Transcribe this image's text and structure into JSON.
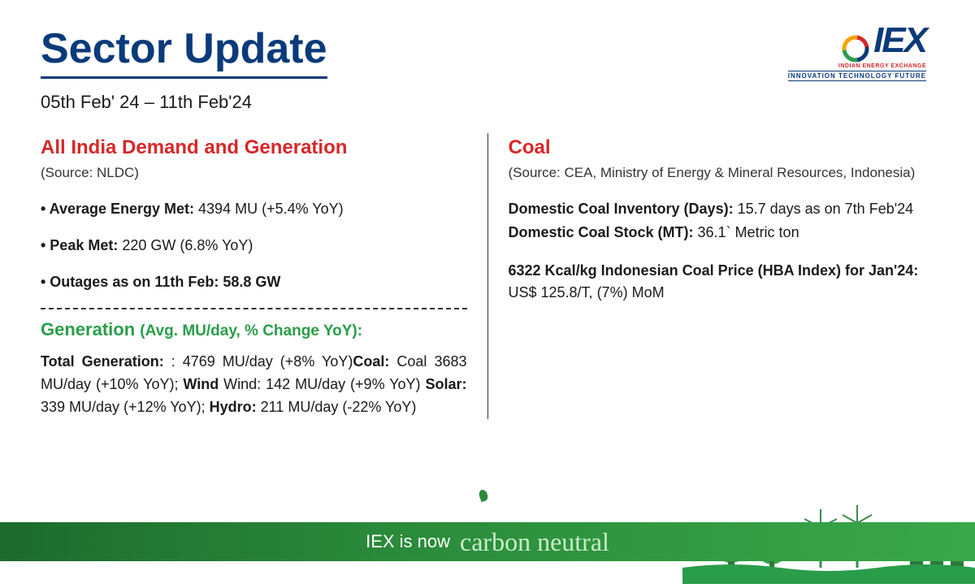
{
  "header": {
    "title": "Sector Update",
    "date_range": "05th Feb' 24 – 11th Feb'24"
  },
  "logo": {
    "text": "IEX",
    "sub": "INDIAN ENERGY EXCHANGE",
    "tag": "INNOVATION  TECHNOLOGY  FUTURE",
    "swirl_colors": [
      "#d62828",
      "#0a3a7a",
      "#2a9d4a"
    ]
  },
  "colors": {
    "title_blue": "#0a3a7a",
    "accent_red": "#d62828",
    "accent_green": "#2a9d4a",
    "banner_gradient_from": "#1d6b2e",
    "banner_gradient_to": "#3aa84a",
    "text": "#1a1a1a"
  },
  "left": {
    "section_title": "All India Demand and Generation",
    "source": "(Source: NLDC)",
    "bullets": [
      {
        "label": "• Average Energy Met:",
        "value": " 4394 MU (+5.4% YoY)"
      },
      {
        "label": "• Peak Met:",
        "value": " 220 GW (6.8% YoY)"
      },
      {
        "label": "• Outages as on 11th Feb: 58.8 GW",
        "value": ""
      }
    ],
    "gen_title_a": "Generation ",
    "gen_title_b": "(Avg. MU/day, % Change YoY):",
    "gen_items": [
      {
        "label": "Total Generation:",
        "value": " : 4769 MU/day (+8% YoY)"
      },
      {
        "label": "Coal:",
        "value": " Coal 3683 MU/day (+10% YoY); "
      },
      {
        "label": "Wind",
        "value": " Wind: 142 MU/day (+9% YoY) "
      },
      {
        "label": "Solar:",
        "value": " 339 MU/day (+12% YoY); "
      },
      {
        "label": "Hydro:",
        "value": " 211 MU/day (-22% YoY)"
      }
    ]
  },
  "right": {
    "section_title": "Coal",
    "source": "(Source: CEA, Ministry of Energy & Mineral Resources, Indonesia)",
    "blocks": [
      [
        {
          "label": "Domestic Coal Inventory (Days):",
          "value": " 15.7 days as on 7th Feb'24"
        },
        {
          "label": "Domestic Coal Stock (MT):",
          "value": " 36.1` Metric ton"
        }
      ],
      [
        {
          "label": "6322 Kcal/kg Indonesian Coal Price (HBA Index) for Jan'24:",
          "value": " US$ 125.8/T, (7%) MoM"
        }
      ]
    ]
  },
  "footer": {
    "text_a": "IEX is now",
    "text_b": "carbon neutral"
  }
}
